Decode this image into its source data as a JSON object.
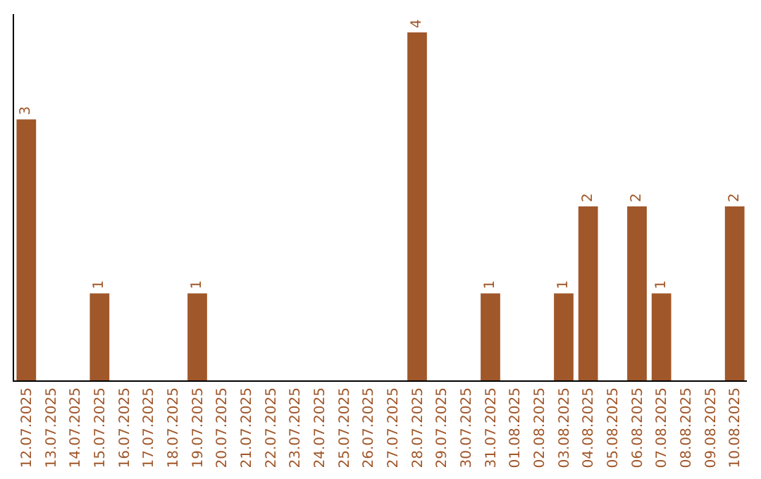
{
  "chart_data": {
    "type": "bar",
    "categories": [
      "12.07.2025",
      "13.07.2025",
      "14.07.2025",
      "15.07.2025",
      "16.07.2025",
      "17.07.2025",
      "18.07.2025",
      "19.07.2025",
      "20.07.2025",
      "21.07.2025",
      "22.07.2025",
      "23.07.2025",
      "24.07.2025",
      "25.07.2025",
      "26.07.2025",
      "27.07.2025",
      "28.07.2025",
      "29.07.2025",
      "30.07.2025",
      "31.07.2025",
      "01.08.2025",
      "02.08.2025",
      "03.08.2025",
      "04.08.2025",
      "05.08.2025",
      "06.08.2025",
      "07.08.2025",
      "08.08.2025",
      "09.08.2025",
      "10.08.2025"
    ],
    "values": [
      3,
      0,
      0,
      1,
      0,
      0,
      0,
      1,
      0,
      0,
      0,
      0,
      0,
      0,
      0,
      0,
      4,
      0,
      0,
      1,
      0,
      0,
      1,
      2,
      0,
      2,
      1,
      0,
      0,
      2
    ],
    "value_labels": [
      "3",
      null,
      null,
      "1",
      null,
      null,
      null,
      "1",
      null,
      null,
      null,
      null,
      null,
      null,
      null,
      null,
      "4",
      null,
      null,
      "1",
      null,
      null,
      "1",
      "2",
      null,
      "2",
      "1",
      null,
      null,
      "2"
    ],
    "color": "#a0572a",
    "tick_labels": "x",
    "grid": false,
    "legend": false
  }
}
